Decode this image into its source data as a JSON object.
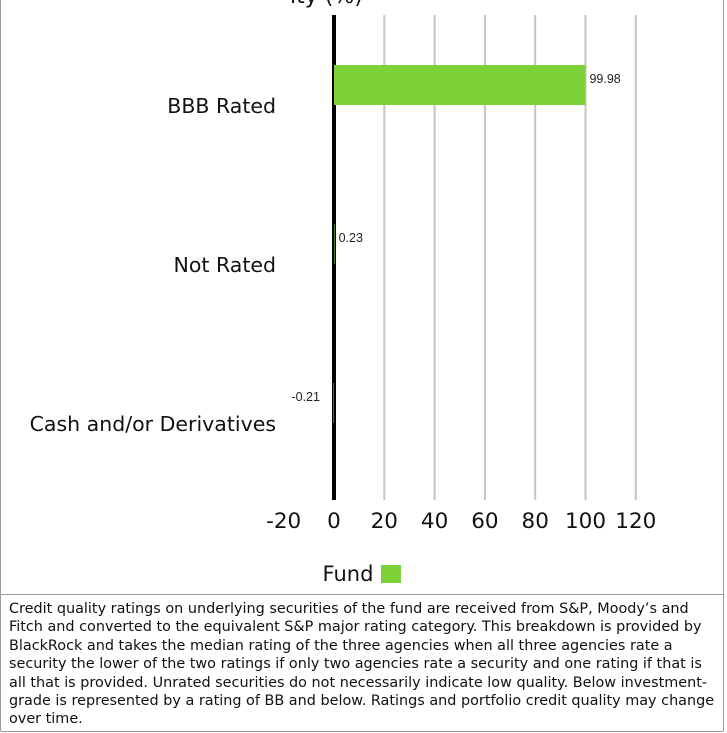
{
  "chart_data": {
    "type": "bar",
    "orientation": "horizontal",
    "categories": [
      "BBB Rated",
      "Not Rated",
      "Cash and/or Derivatives"
    ],
    "series": [
      {
        "name": "Fund",
        "values": [
          99.98,
          0.23,
          -0.21
        ],
        "color": "#7dd23a"
      }
    ],
    "data_labels": [
      "99.98",
      "0.23",
      "-0.21"
    ],
    "xlim": [
      -20,
      120
    ],
    "xticks": [
      "-20",
      "0",
      "20",
      "40",
      "60",
      "80",
      "100",
      "120"
    ],
    "grid": true,
    "legend_position": "bottom"
  },
  "legend": {
    "label": "Fund"
  },
  "footnote": "Credit quality ratings on underlying securities of the fund are received from S&P, Moody’s and Fitch and converted to the equivalent S&P major rating category. This breakdown is provided by BlackRock and takes the median rating of the three agencies when all three agencies rate a security the lower of the two ratings if only two agencies rate a security and one rating if that is all that is provided. Unrated securities do not necessarily indicate low quality. Below investment-grade is represented by a rating of BB and below. Ratings and portfolio credit quality may change over time."
}
